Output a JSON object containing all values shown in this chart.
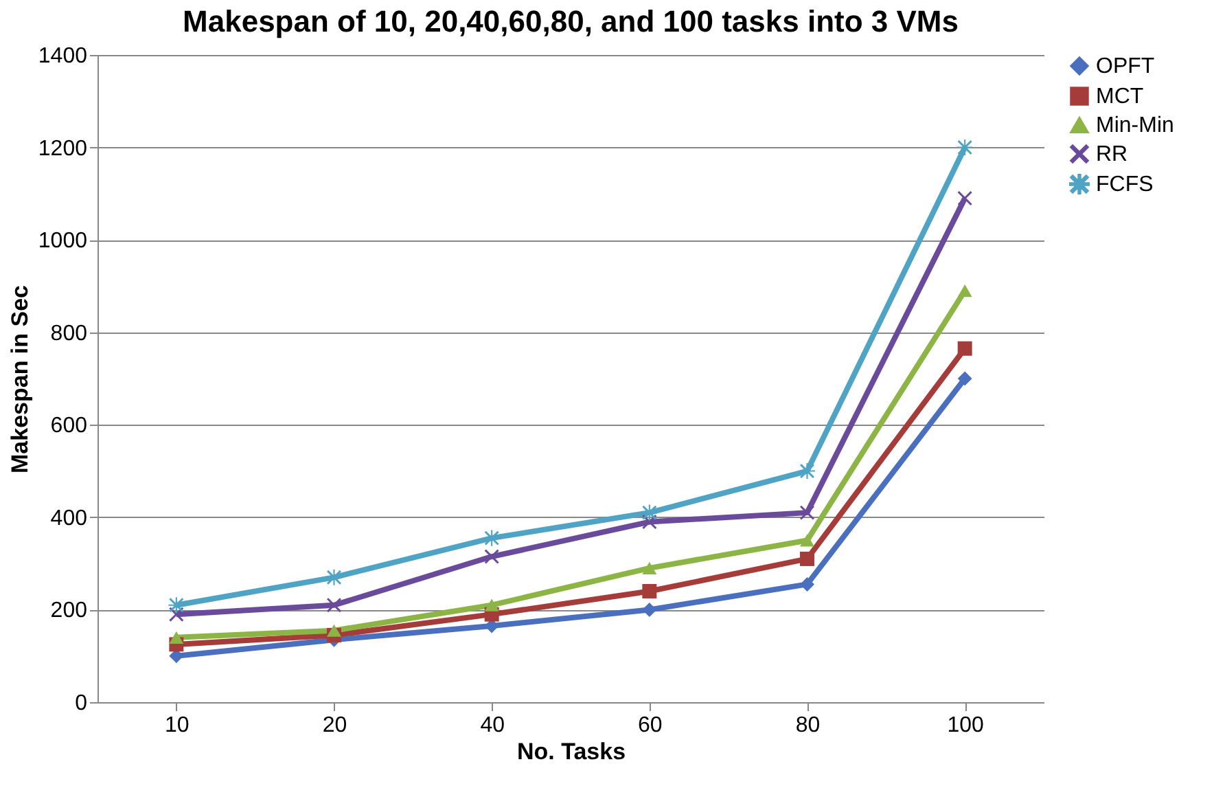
{
  "chart_data": {
    "type": "line",
    "title": "Makespan of 10, 20,40,60,80, and 100 tasks into 3 VMs",
    "xlabel": "No. Tasks",
    "ylabel": "Makespan in Sec",
    "categories": [
      "10",
      "20",
      "40",
      "60",
      "80",
      "100"
    ],
    "series": [
      {
        "name": "OPFT",
        "color": "#4a6fbf",
        "marker": "diamond",
        "values": [
          100,
          135,
          165,
          200,
          255,
          700
        ]
      },
      {
        "name": "MCT",
        "color": "#a63c3a",
        "marker": "square",
        "values": [
          125,
          145,
          190,
          240,
          310,
          765
        ]
      },
      {
        "name": "Min-Min",
        "color": "#8db545",
        "marker": "triangle",
        "values": [
          140,
          155,
          210,
          290,
          350,
          890
        ]
      },
      {
        "name": "RR",
        "color": "#6a4a9a",
        "marker": "cross",
        "values": [
          190,
          210,
          315,
          390,
          410,
          1090
        ]
      },
      {
        "name": "FCFS",
        "color": "#4fa3c4",
        "marker": "star",
        "values": [
          210,
          270,
          355,
          410,
          500,
          1200
        ]
      }
    ],
    "ylim": [
      0,
      1400
    ],
    "yticks": [
      0,
      200,
      400,
      600,
      800,
      1000,
      1200,
      1400
    ],
    "grid": "y",
    "legend": "right",
    "line_style": "solid"
  }
}
